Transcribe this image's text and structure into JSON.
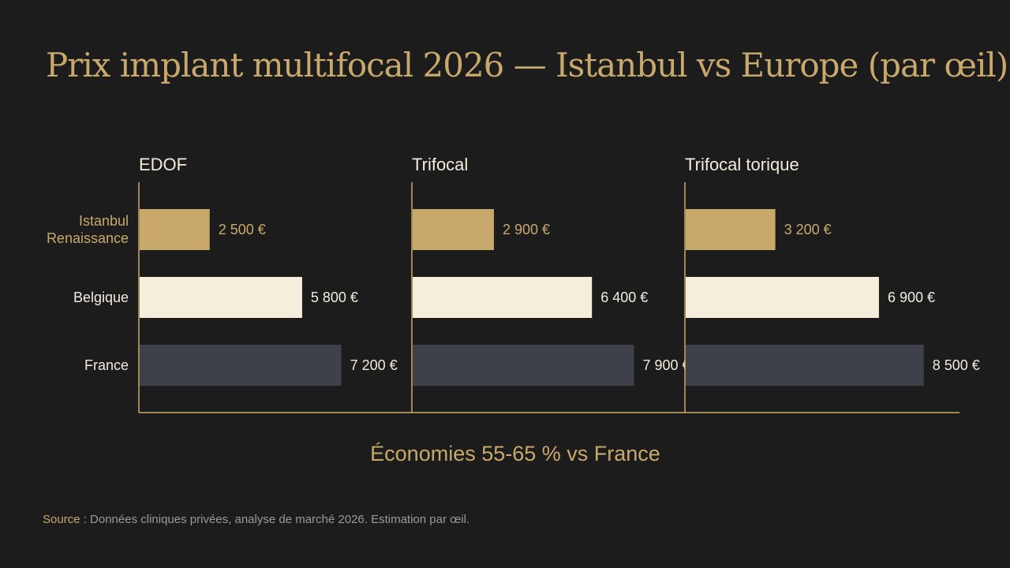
{
  "title": "Prix implant multifocal 2026 — Istanbul vs Europe (par œil)",
  "savings_note": "Économies 55-65 % vs France",
  "source": {
    "label": "Source :",
    "text": " Données cliniques privées, analyse de marché 2026. Estimation par œil."
  },
  "colors": {
    "background": "#1c1c1c",
    "accent_gold": "#c9a96b",
    "istanbul_bar": "#c9a96b",
    "belgique_bar": "#f5eedb",
    "france_bar": "#3e414a",
    "axis": "#c9a96b",
    "value_label": "#f3ecdc"
  },
  "chart_data": {
    "type": "bar",
    "orientation": "horizontal",
    "categories": [
      "Istanbul\nRenaissance",
      "Belgique",
      "France"
    ],
    "category_label_colors": [
      "#c9a96b",
      "#f3ecdc",
      "#f3ecdc"
    ],
    "value_label_colors": [
      "#c9a96b",
      "#f3ecdc",
      "#f3ecdc"
    ],
    "bar_colors": [
      "#c9a96b",
      "#f5eedb",
      "#3e414a"
    ],
    "panels": [
      {
        "title": "EDOF",
        "values": [
          2500
        ],
        "labels": [
          "2 500 €",
          "5 800 €",
          "7 200 €"
        ],
        "all_values": [
          2500,
          5800,
          7200
        ]
      },
      {
        "title": "Trifocal",
        "values": [
          2900
        ],
        "labels": [
          "2 900 €",
          "6 400 €",
          "7 900 €"
        ],
        "all_values": [
          2900,
          6400,
          7900
        ]
      },
      {
        "title": "Trifocal torique",
        "values": [
          3200
        ],
        "labels": [
          "3 200 €",
          "6 900 €",
          "8 500 €"
        ],
        "all_values": [
          3200,
          6900,
          8500
        ]
      }
    ],
    "xlim": [
      0,
      8500
    ],
    "grid": false,
    "legend": "none",
    "xlabel": "",
    "ylabel": ""
  }
}
